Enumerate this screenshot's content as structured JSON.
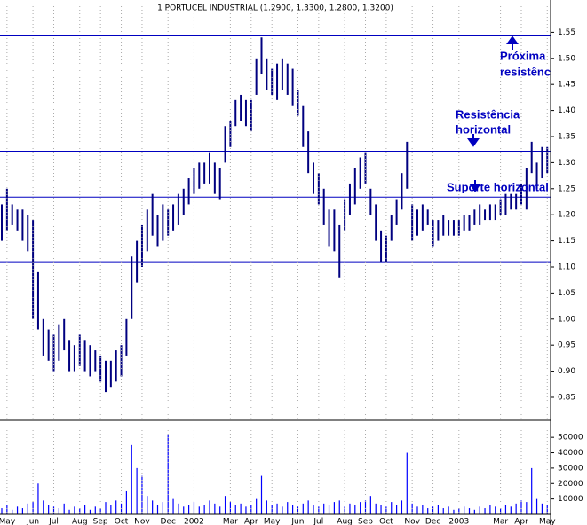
{
  "chart_data": [
    {
      "type": "ohlc",
      "title": "1 PORTUCEL INDUSTRIAL (1.2900, 1.3300, 1.2800, 1.3200)",
      "color": "#000080",
      "categories": [
        null,
        "May",
        null,
        null,
        null,
        null,
        "Jun",
        null,
        null,
        null,
        "Jul",
        null,
        null,
        null,
        null,
        "Aug",
        null,
        null,
        null,
        "Sep",
        null,
        null,
        null,
        "Oct",
        null,
        null,
        null,
        "Nov",
        null,
        null,
        null,
        null,
        "Dec",
        null,
        null,
        null,
        null,
        "2002",
        null,
        null,
        null,
        null,
        null,
        null,
        "Mar",
        null,
        null,
        null,
        "Apr",
        null,
        null,
        null,
        "May",
        null,
        null,
        null,
        null,
        "Jun",
        null,
        null,
        null,
        "Jul",
        null,
        null,
        null,
        null,
        "Aug",
        null,
        null,
        null,
        "Sep",
        null,
        null,
        null,
        "Oct",
        null,
        null,
        null,
        null,
        "Nov",
        null,
        null,
        null,
        "Dec",
        null,
        null,
        null,
        null,
        "2003",
        null,
        null,
        null,
        null,
        null,
        null,
        null,
        "Mar",
        null,
        null,
        null,
        "Apr",
        null,
        null,
        null,
        null,
        "May"
      ],
      "high": [
        1.22,
        1.25,
        1.22,
        1.21,
        1.21,
        1.2,
        1.19,
        1.09,
        1.0,
        0.98,
        0.97,
        0.99,
        1.0,
        0.96,
        0.95,
        0.97,
        0.96,
        0.95,
        0.94,
        0.93,
        0.92,
        0.92,
        0.94,
        0.95,
        1.0,
        1.12,
        1.15,
        1.18,
        1.21,
        1.24,
        1.2,
        1.22,
        1.21,
        1.22,
        1.24,
        1.25,
        1.27,
        1.29,
        1.3,
        1.3,
        1.32,
        1.3,
        1.29,
        1.37,
        1.38,
        1.42,
        1.43,
        1.42,
        1.42,
        1.5,
        1.54,
        1.5,
        1.48,
        1.49,
        1.5,
        1.49,
        1.48,
        1.44,
        1.41,
        1.36,
        1.3,
        1.28,
        1.25,
        1.21,
        1.21,
        1.18,
        1.23,
        1.26,
        1.29,
        1.31,
        1.32,
        1.25,
        1.22,
        1.17,
        1.16,
        1.2,
        1.23,
        1.28,
        1.34,
        1.22,
        1.21,
        1.22,
        1.21,
        1.19,
        1.19,
        1.2,
        1.19,
        1.19,
        1.19,
        1.2,
        1.2,
        1.21,
        1.22,
        1.21,
        1.22,
        1.22,
        1.23,
        1.24,
        1.24,
        1.24,
        1.26,
        1.29,
        1.34,
        1.3,
        1.33,
        1.33
      ],
      "low": [
        1.15,
        1.17,
        1.18,
        1.17,
        1.15,
        1.13,
        1.0,
        0.98,
        0.93,
        0.92,
        0.9,
        0.92,
        0.94,
        0.9,
        0.9,
        0.91,
        0.9,
        0.89,
        0.9,
        0.88,
        0.86,
        0.87,
        0.88,
        0.89,
        0.93,
        1.0,
        1.07,
        1.1,
        1.13,
        1.16,
        1.14,
        1.15,
        1.16,
        1.17,
        1.18,
        1.2,
        1.22,
        1.24,
        1.25,
        1.26,
        1.26,
        1.24,
        1.23,
        1.3,
        1.33,
        1.37,
        1.38,
        1.37,
        1.36,
        1.43,
        1.47,
        1.44,
        1.43,
        1.42,
        1.44,
        1.43,
        1.41,
        1.39,
        1.33,
        1.28,
        1.24,
        1.22,
        1.18,
        1.14,
        1.13,
        1.08,
        1.17,
        1.2,
        1.22,
        1.25,
        1.26,
        1.2,
        1.15,
        1.11,
        1.11,
        1.15,
        1.18,
        1.21,
        1.25,
        1.15,
        1.16,
        1.17,
        1.18,
        1.14,
        1.15,
        1.16,
        1.16,
        1.16,
        1.16,
        1.17,
        1.17,
        1.18,
        1.18,
        1.19,
        1.19,
        1.19,
        1.2,
        1.2,
        1.21,
        1.21,
        1.22,
        1.21,
        1.28,
        1.25,
        1.27,
        1.28
      ],
      "levels": [
        1.543,
        1.322,
        1.234,
        1.11
      ],
      "level_color": "#0000c0",
      "ylim": [
        0.81,
        1.6
      ],
      "yticks": [
        1.55,
        {
          "value": 1.5,
          "label": "1.50"
        },
        1.45,
        {
          "value": 1.4,
          "label": "1.40"
        },
        1.35,
        {
          "value": 1.3,
          "label": "1.30"
        },
        1.25,
        {
          "value": 1.2,
          "label": "1.20"
        },
        1.15,
        {
          "value": 1.1,
          "label": "1.10"
        },
        1.05,
        {
          "value": 1,
          "label": "1.00"
        },
        0.95,
        {
          "value": 0.9,
          "label": "0.90"
        },
        0.85
      ],
      "annotations": [
        "Próxima",
        "resistência",
        "Resistência",
        "horizontal",
        "Suporte horizontal"
      ],
      "grid": true
    },
    {
      "type": "bar",
      "color": "#0000ff",
      "values": [
        4000,
        6000,
        3000,
        5000,
        4000,
        7000,
        8000,
        20000,
        9000,
        6000,
        5000,
        4000,
        7000,
        3000,
        5000,
        4000,
        6000,
        3000,
        5000,
        4000,
        8000,
        6000,
        9000,
        7000,
        15000,
        45000,
        30000,
        25000,
        12000,
        9000,
        6000,
        8000,
        52000,
        10000,
        7000,
        5000,
        6000,
        8000,
        5000,
        6000,
        9000,
        7000,
        5000,
        12000,
        8000,
        6000,
        7000,
        5000,
        6000,
        10000,
        25000,
        9000,
        6000,
        7000,
        5000,
        8000,
        6000,
        5000,
        7000,
        9000,
        6000,
        5000,
        7000,
        6000,
        8000,
        9000,
        5000,
        7000,
        6000,
        8000,
        9000,
        12000,
        7000,
        6000,
        5000,
        8000,
        6000,
        9000,
        40000,
        7000,
        5000,
        6000,
        4000,
        5000,
        6000,
        4000,
        5000,
        3000,
        4000,
        5000,
        4000,
        3000,
        5000,
        4000,
        6000,
        5000,
        4000,
        6000,
        5000,
        7000,
        9000,
        8000,
        30000,
        10000,
        7000,
        6000
      ],
      "ylim": [
        0,
        57000
      ],
      "yticks": [
        10000,
        20000,
        30000,
        40000,
        50000
      ],
      "grid": false
    }
  ]
}
